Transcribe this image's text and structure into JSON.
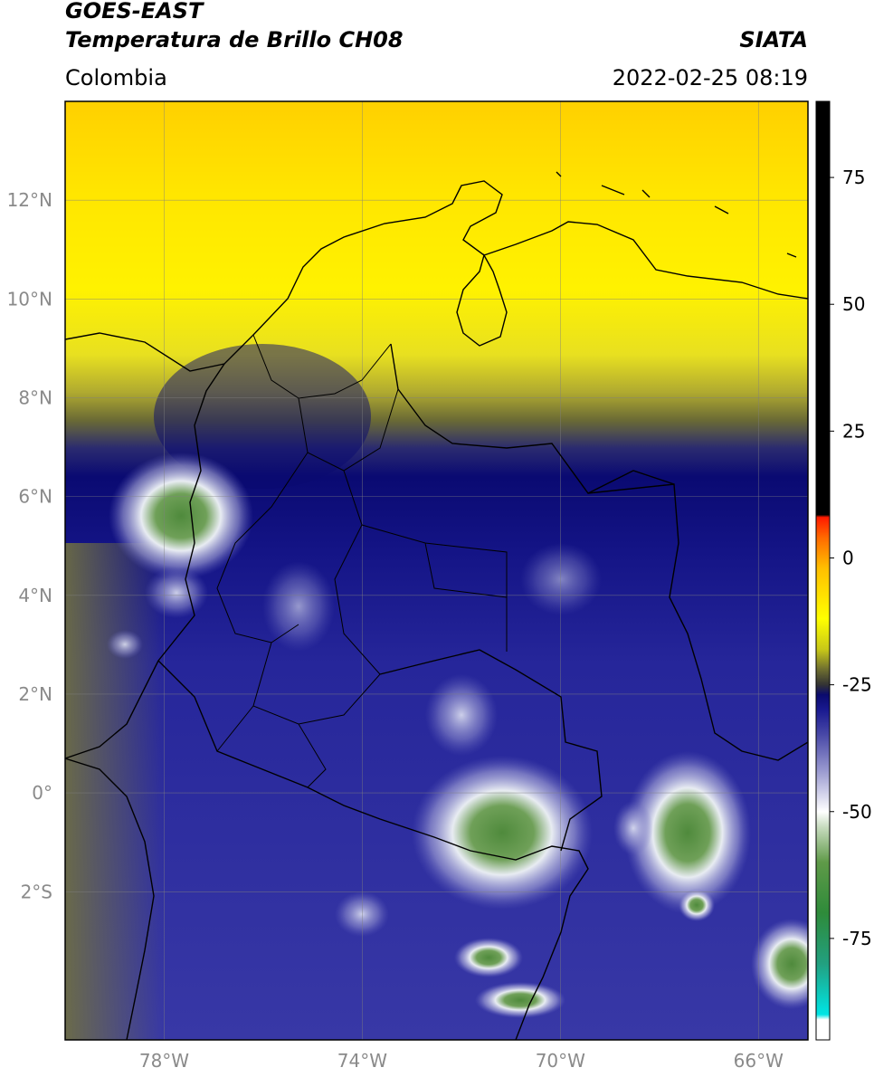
{
  "header": {
    "satellite": "GOES-EAST",
    "product": "Temperatura de Brillo CH08",
    "brand": "SIATA",
    "region": "Colombia",
    "timestamp": "2022-02-25 08:19"
  },
  "map": {
    "lon_range": [
      -80,
      -65
    ],
    "lat_range": [
      -5,
      14
    ],
    "lat_ticks": [
      {
        "value": 12,
        "label": "12°N"
      },
      {
        "value": 10,
        "label": "10°N"
      },
      {
        "value": 8,
        "label": "8°N"
      },
      {
        "value": 6,
        "label": "6°N"
      },
      {
        "value": 4,
        "label": "4°N"
      },
      {
        "value": 2,
        "label": "2°N"
      },
      {
        "value": 0,
        "label": "0°"
      },
      {
        "value": -2,
        "label": "2°S"
      }
    ],
    "lon_ticks": [
      {
        "value": -78,
        "label": "78°W"
      },
      {
        "value": -74,
        "label": "74°W"
      },
      {
        "value": -70,
        "label": "70°W"
      },
      {
        "value": -66,
        "label": "66°W"
      }
    ],
    "grid": true
  },
  "colorbar": {
    "range": [
      -95,
      90
    ],
    "ticks": [
      {
        "value": 75,
        "label": "75"
      },
      {
        "value": 50,
        "label": "50"
      },
      {
        "value": 25,
        "label": "25"
      },
      {
        "value": 0,
        "label": "0"
      },
      {
        "value": -25,
        "label": "-25"
      },
      {
        "value": -50,
        "label": "-50"
      },
      {
        "value": -75,
        "label": "-75"
      }
    ],
    "stops": [
      {
        "value": -95,
        "color": "#ffffff"
      },
      {
        "value": -91,
        "color": "#ffffff"
      },
      {
        "value": -90,
        "color": "#00e5e5"
      },
      {
        "value": -80,
        "color": "#22a080"
      },
      {
        "value": -70,
        "color": "#2e8b3a"
      },
      {
        "value": -60,
        "color": "#5f9a48"
      },
      {
        "value": -53,
        "color": "#c8dcc0"
      },
      {
        "value": -50,
        "color": "#ffffff"
      },
      {
        "value": -42,
        "color": "#9a9ad0"
      },
      {
        "value": -35,
        "color": "#4a4aa8"
      },
      {
        "value": -30,
        "color": "#1a1a90"
      },
      {
        "value": -27,
        "color": "#0a0a6e"
      },
      {
        "value": -25,
        "color": "#333333"
      },
      {
        "value": -22,
        "color": "#6e6e30"
      },
      {
        "value": -18,
        "color": "#c8c818"
      },
      {
        "value": -12,
        "color": "#ffff00"
      },
      {
        "value": -2,
        "color": "#ffbf00"
      },
      {
        "value": 4,
        "color": "#ff6a00"
      },
      {
        "value": 8,
        "color": "#ff1a00"
      },
      {
        "value": 8.5,
        "color": "#000000"
      },
      {
        "value": 90,
        "color": "#000000"
      }
    ]
  }
}
